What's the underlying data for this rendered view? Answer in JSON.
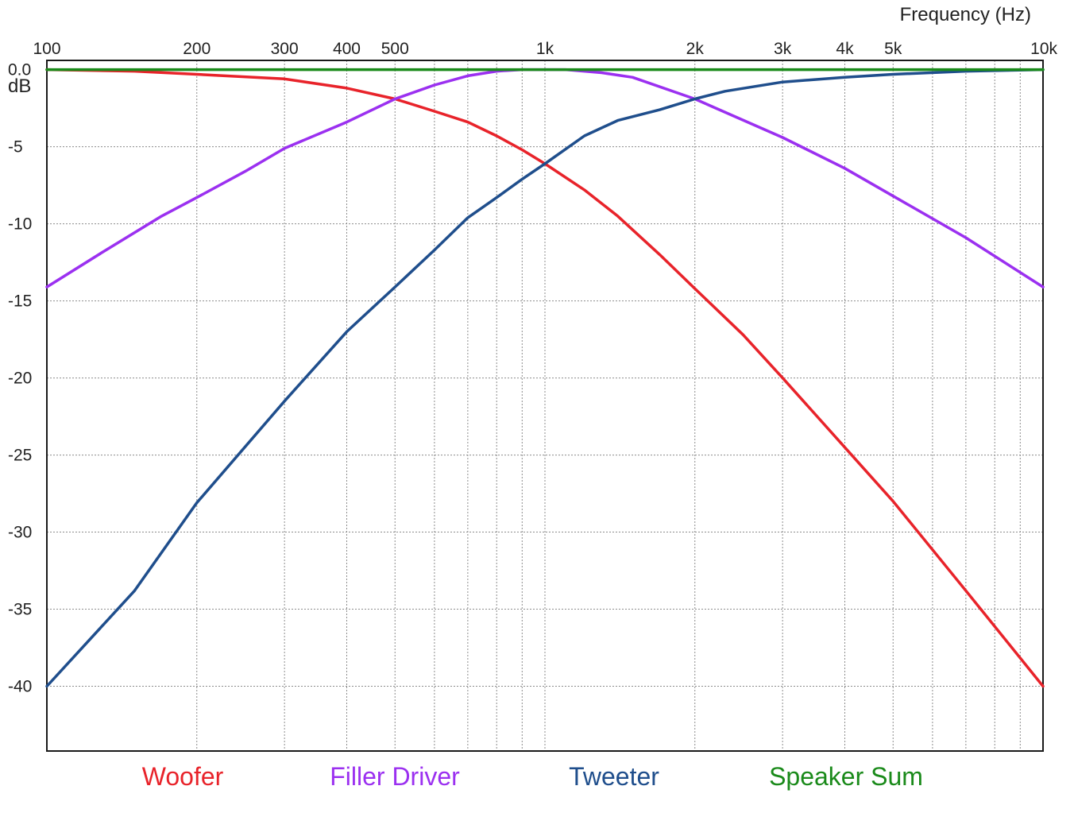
{
  "chart_data": {
    "type": "line",
    "title": "",
    "xlabel": "Frequency  (Hz)",
    "ylabel": "dB",
    "x_scale": "log",
    "xlim": [
      100,
      10000
    ],
    "ylim": [
      -44.2,
      0.6
    ],
    "grid": true,
    "x_ticks": [
      {
        "value": 100,
        "label": "100"
      },
      {
        "value": 200,
        "label": "200"
      },
      {
        "value": 300,
        "label": "300"
      },
      {
        "value": 400,
        "label": "400"
      },
      {
        "value": 500,
        "label": "500"
      },
      {
        "value": 1000,
        "label": "1k"
      },
      {
        "value": 2000,
        "label": "2k"
      },
      {
        "value": 3000,
        "label": "3k"
      },
      {
        "value": 4000,
        "label": "4k"
      },
      {
        "value": 5000,
        "label": "5k"
      },
      {
        "value": 10000,
        "label": "10k"
      }
    ],
    "x_minor_gridlines": [
      600,
      700,
      800,
      900,
      6000,
      7000,
      8000,
      9000
    ],
    "y_ticks": [
      {
        "value": 0,
        "label": "0.0"
      },
      {
        "value": -5,
        "label": "-5"
      },
      {
        "value": -10,
        "label": "-10"
      },
      {
        "value": -15,
        "label": "-15"
      },
      {
        "value": -20,
        "label": "-20"
      },
      {
        "value": -25,
        "label": "-25"
      },
      {
        "value": -30,
        "label": "-30"
      },
      {
        "value": -35,
        "label": "-35"
      },
      {
        "value": -40,
        "label": "-40"
      }
    ],
    "legend_position": "bottom",
    "series": [
      {
        "name": "Woofer",
        "color": "#e8232a",
        "points": [
          [
            100,
            0
          ],
          [
            150,
            -0.1
          ],
          [
            200,
            -0.3
          ],
          [
            300,
            -0.6
          ],
          [
            400,
            -1.2
          ],
          [
            500,
            -1.9
          ],
          [
            600,
            -2.7
          ],
          [
            700,
            -3.4
          ],
          [
            800,
            -4.3
          ],
          [
            900,
            -5.2
          ],
          [
            1000,
            -6.1
          ],
          [
            1200,
            -7.8
          ],
          [
            1400,
            -9.5
          ],
          [
            1700,
            -12.0
          ],
          [
            2000,
            -14.2
          ],
          [
            2500,
            -17.2
          ],
          [
            3000,
            -20.0
          ],
          [
            4000,
            -24.5
          ],
          [
            5000,
            -28.0
          ],
          [
            7000,
            -33.8
          ],
          [
            10000,
            -40.0
          ]
        ]
      },
      {
        "name": "Filler Driver",
        "color": "#9b30f0",
        "points": [
          [
            100,
            -14.1
          ],
          [
            130,
            -11.8
          ],
          [
            170,
            -9.5
          ],
          [
            200,
            -8.3
          ],
          [
            250,
            -6.6
          ],
          [
            300,
            -5.1
          ],
          [
            400,
            -3.4
          ],
          [
            500,
            -1.9
          ],
          [
            600,
            -1.0
          ],
          [
            700,
            -0.4
          ],
          [
            800,
            -0.1
          ],
          [
            900,
            0
          ],
          [
            1000,
            0
          ],
          [
            1100,
            0
          ],
          [
            1300,
            -0.2
          ],
          [
            1500,
            -0.5
          ],
          [
            2000,
            -1.9
          ],
          [
            3000,
            -4.4
          ],
          [
            4000,
            -6.4
          ],
          [
            5000,
            -8.2
          ],
          [
            7000,
            -10.9
          ],
          [
            10000,
            -14.1
          ]
        ]
      },
      {
        "name": "Tweeter",
        "color": "#1f4e8c",
        "points": [
          [
            100,
            -40.0
          ],
          [
            150,
            -33.8
          ],
          [
            200,
            -28.1
          ],
          [
            300,
            -21.5
          ],
          [
            400,
            -17.0
          ],
          [
            500,
            -14.1
          ],
          [
            600,
            -11.7
          ],
          [
            700,
            -9.6
          ],
          [
            800,
            -8.3
          ],
          [
            900,
            -7.1
          ],
          [
            1000,
            -6.1
          ],
          [
            1200,
            -4.3
          ],
          [
            1400,
            -3.3
          ],
          [
            1700,
            -2.6
          ],
          [
            2000,
            -1.9
          ],
          [
            2300,
            -1.4
          ],
          [
            3000,
            -0.8
          ],
          [
            4000,
            -0.5
          ],
          [
            5000,
            -0.3
          ],
          [
            7000,
            -0.1
          ],
          [
            10000,
            0
          ]
        ]
      },
      {
        "name": "Speaker Sum",
        "color": "#1a8a1a",
        "points": [
          [
            100,
            0
          ],
          [
            10000,
            0
          ]
        ]
      }
    ]
  }
}
